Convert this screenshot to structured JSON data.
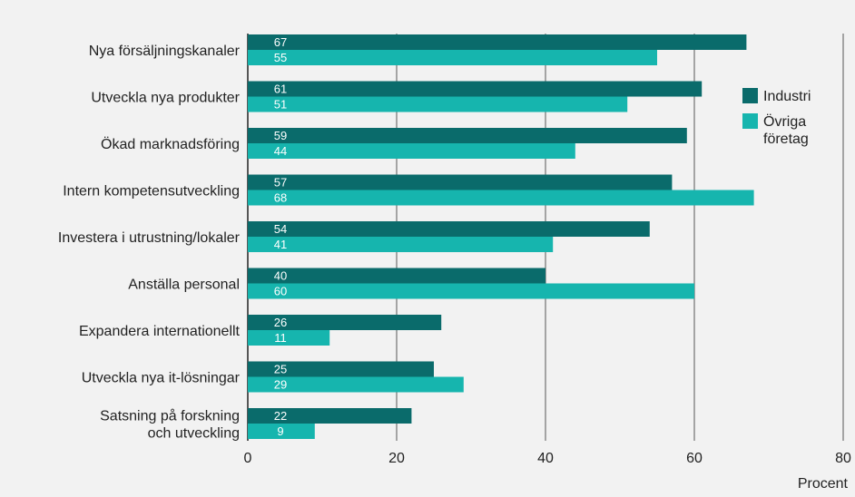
{
  "chart_data": {
    "type": "bar",
    "orientation": "horizontal",
    "title": "",
    "xlabel": "Procent",
    "ylabel": "",
    "xlim": [
      0,
      80
    ],
    "x_ticks": [
      0,
      20,
      40,
      60,
      80
    ],
    "grid": true,
    "legend_position": "right",
    "categories": [
      [
        "Nya försäljningskanaler"
      ],
      [
        "Utveckla nya produkter"
      ],
      [
        "Ökad marknadsföring"
      ],
      [
        "Intern kompetensutveckling"
      ],
      [
        "Investera i utrustning/lokaler"
      ],
      [
        "Anställa personal"
      ],
      [
        "Expandera internationellt"
      ],
      [
        "Utveckla nya it-lösningar"
      ],
      [
        "Satsning på forskning",
        "och utveckling"
      ]
    ],
    "series": [
      {
        "name": "Industri",
        "color": "#0a6b6b",
        "values": [
          67,
          61,
          59,
          57,
          54,
          40,
          26,
          25,
          22
        ]
      },
      {
        "name": "Övriga företag",
        "color": "#16b5ae",
        "values": [
          55,
          51,
          44,
          68,
          41,
          60,
          11,
          29,
          9
        ]
      }
    ],
    "legend": [
      {
        "lines": [
          "Industri"
        ],
        "color": "#0a6b6b"
      },
      {
        "lines": [
          "Övriga",
          "företag"
        ],
        "color": "#16b5ae"
      }
    ]
  }
}
